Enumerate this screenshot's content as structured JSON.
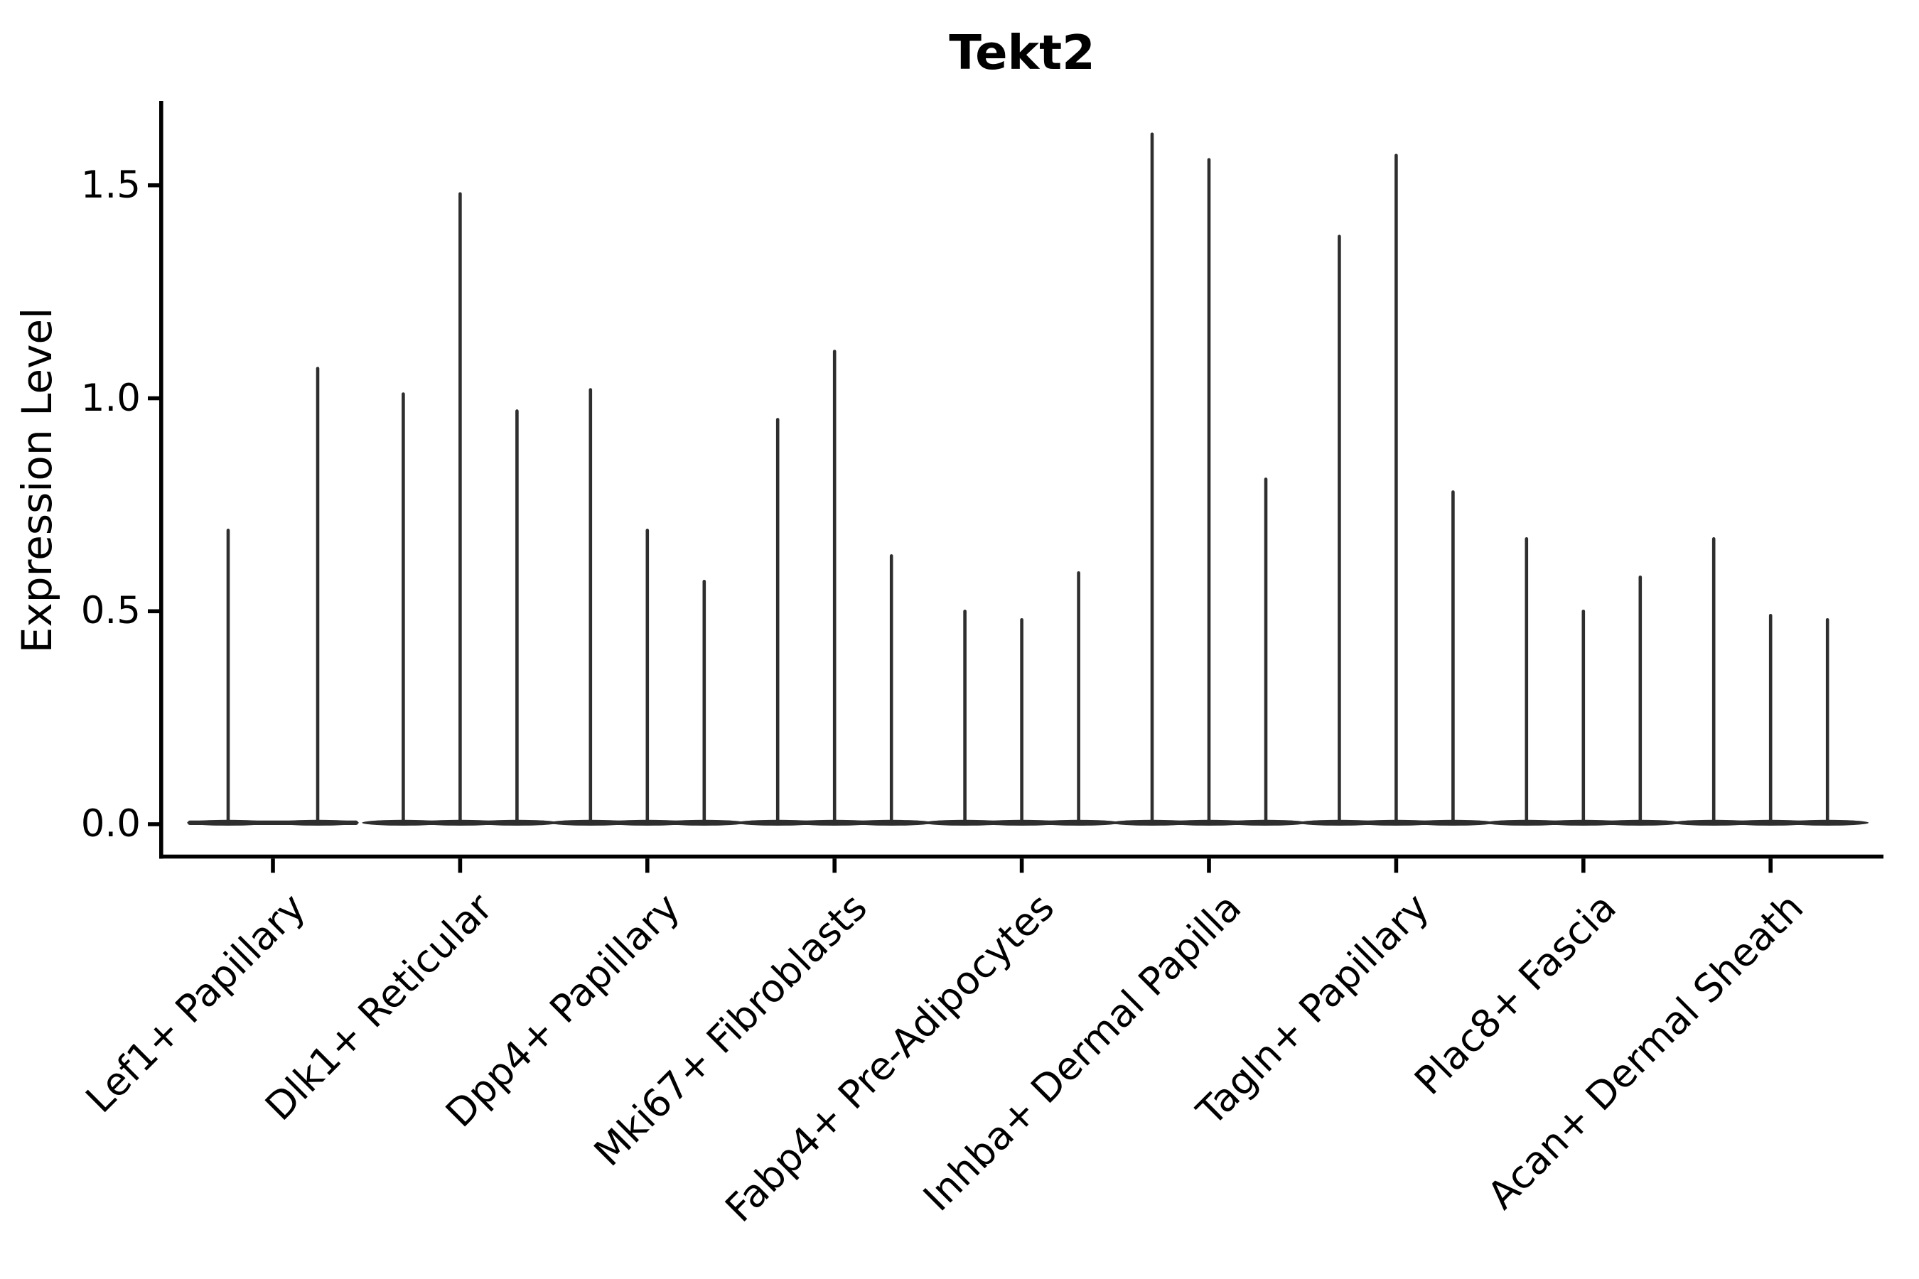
{
  "chart_data": {
    "type": "violin",
    "title": "Tekt2",
    "xlabel": "",
    "ylabel": "Expression Level",
    "y_tick_labels": [
      "0.0",
      "0.5",
      "1.0",
      "1.5"
    ],
    "y_tick_values": [
      0.0,
      0.5,
      1.0,
      1.5
    ],
    "ylim": [
      -0.07,
      1.7
    ],
    "grid": false,
    "legend": "none",
    "violin_color": "#2e2e2e",
    "axis_color": "#000000",
    "background_color": "#ffffff",
    "description": "Needle-shaped violins: nearly all cells at expression 0 (flat base band), thin spike up to the max expressed value; 2-3 violins (replicates) per cell-type category",
    "categories": [
      "Lef1+ Papillary",
      "Dlk1+ Reticular",
      "Dpp4+ Papillary",
      "Mki67+ Fibroblasts",
      "Fabp4+ Pre-Adipocytes",
      "Inhba+ Dermal Papilla",
      "Tagln+ Papillary",
      "Plac8+ Fascia",
      "Acan+ Dermal Sheath"
    ],
    "groups": [
      {
        "category": "Lef1+ Papillary",
        "violin_max_values": [
          0.69,
          1.07
        ]
      },
      {
        "category": "Dlk1+ Reticular",
        "violin_max_values": [
          1.01,
          1.48,
          0.97
        ]
      },
      {
        "category": "Dpp4+ Papillary",
        "violin_max_values": [
          1.02,
          0.69,
          0.57
        ]
      },
      {
        "category": "Mki67+ Fibroblasts",
        "violin_max_values": [
          0.95,
          1.11,
          0.63
        ]
      },
      {
        "category": "Fabp4+ Pre-Adipocytes",
        "violin_max_values": [
          0.5,
          0.48,
          0.59
        ]
      },
      {
        "category": "Inhba+ Dermal Papilla",
        "violin_max_values": [
          1.62,
          1.56,
          0.81
        ]
      },
      {
        "category": "Tagln+ Papillary",
        "violin_max_values": [
          1.38,
          1.57,
          0.78
        ]
      },
      {
        "category": "Plac8+ Fascia",
        "violin_max_values": [
          0.67,
          0.5,
          0.58
        ]
      },
      {
        "category": "Acan+ Dermal Sheath",
        "violin_max_values": [
          0.67,
          0.49,
          0.48
        ]
      }
    ]
  }
}
